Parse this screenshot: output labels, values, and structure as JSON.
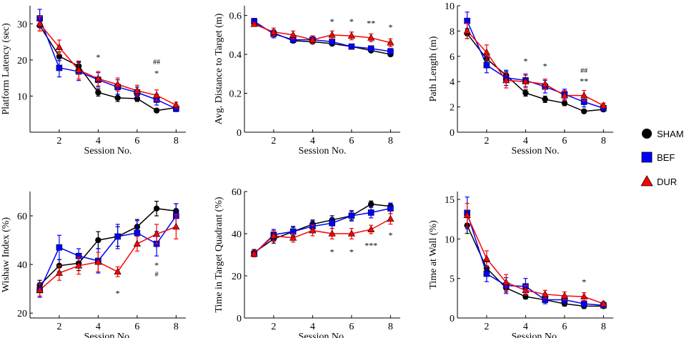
{
  "colors": {
    "SHAM": "#000000",
    "BEF": "#0000ff",
    "DUR": "#ff0000"
  },
  "legend": [
    {
      "name": "SHAM",
      "marker": "circle"
    },
    {
      "name": "BEF",
      "marker": "square"
    },
    {
      "name": "DUR",
      "marker": "triangle"
    }
  ],
  "chart_data": [
    {
      "type": "line",
      "ylabel": "Platform Latency (sec)",
      "xlabel": "Session No.",
      "xlim": [
        0.5,
        8.5
      ],
      "xticks": [
        2,
        4,
        6,
        8
      ],
      "ylim": [
        0,
        35
      ],
      "yticks": [
        10,
        20,
        30
      ],
      "x": [
        1,
        2,
        3,
        4,
        5,
        6,
        7,
        8
      ],
      "series": [
        {
          "name": "SHAM",
          "values": [
            29.5,
            21,
            18.3,
            11,
            9.5,
            9.3,
            6,
            6.8
          ],
          "err": [
            1.5,
            1.2,
            1.2,
            1,
            1,
            0.8,
            0.5,
            0.5
          ]
        },
        {
          "name": "BEF",
          "values": [
            31.5,
            17.8,
            16.8,
            14.5,
            12.5,
            11,
            9,
            6.5
          ],
          "err": [
            2.5,
            2.5,
            2.5,
            2,
            2,
            1.5,
            1.5,
            0.8
          ]
        },
        {
          "name": "DUR",
          "values": [
            30,
            23.5,
            17.2,
            14.8,
            13.2,
            11.5,
            10.2,
            7.5
          ],
          "err": [
            2,
            2,
            2.5,
            2,
            1.8,
            1.5,
            1.5,
            0.8
          ]
        }
      ],
      "annotations": [
        {
          "x": 4,
          "y": 20,
          "text": "*",
          "style": "grey"
        },
        {
          "x": 7,
          "y": 18.8,
          "text": "##",
          "style": "dark"
        },
        {
          "x": 7,
          "y": 15.5,
          "text": "*",
          "style": "grey"
        }
      ]
    },
    {
      "type": "line",
      "ylabel": "Avg. Distance to Target (m)",
      "xlabel": "Session No.",
      "xlim": [
        0.5,
        8.5
      ],
      "xticks": [
        2,
        4,
        6,
        8
      ],
      "ylim": [
        0,
        0.65
      ],
      "yticks": [
        0,
        0.2,
        0.4,
        0.6
      ],
      "x": [
        1,
        2,
        3,
        4,
        5,
        6,
        7,
        8
      ],
      "series": [
        {
          "name": "SHAM",
          "values": [
            0.56,
            0.51,
            0.47,
            0.465,
            0.455,
            0.44,
            0.42,
            0.4
          ],
          "err": [
            0.01,
            0.015,
            0.01,
            0.01,
            0.01,
            0.01,
            0.01,
            0.01
          ]
        },
        {
          "name": "BEF",
          "values": [
            0.57,
            0.505,
            0.475,
            0.475,
            0.465,
            0.44,
            0.43,
            0.415
          ],
          "err": [
            0.015,
            0.02,
            0.015,
            0.02,
            0.015,
            0.01,
            0.01,
            0.015
          ]
        },
        {
          "name": "DUR",
          "values": [
            0.555,
            0.515,
            0.5,
            0.475,
            0.5,
            0.495,
            0.485,
            0.46
          ],
          "err": [
            0.01,
            0.02,
            0.02,
            0.02,
            0.02,
            0.02,
            0.02,
            0.02
          ]
        }
      ],
      "annotations": [
        {
          "x": 5,
          "y": 0.555,
          "text": "*",
          "style": "grey"
        },
        {
          "x": 6,
          "y": 0.555,
          "text": "*",
          "style": "grey"
        },
        {
          "x": 7,
          "y": 0.545,
          "text": "**",
          "style": "grey"
        },
        {
          "x": 8,
          "y": 0.525,
          "text": "*",
          "style": "grey"
        }
      ]
    },
    {
      "type": "line",
      "ylabel": "Path Length (m)",
      "xlabel": "Session No.",
      "xlim": [
        0.5,
        8.5
      ],
      "xticks": [
        2,
        4,
        6,
        8
      ],
      "ylim": [
        0,
        10
      ],
      "yticks": [
        0,
        2,
        4,
        6,
        8,
        10
      ],
      "x": [
        1,
        2,
        3,
        4,
        5,
        6,
        7,
        8
      ],
      "series": [
        {
          "name": "SHAM",
          "values": [
            7.8,
            5.8,
            4.5,
            3.1,
            2.6,
            2.3,
            1.65,
            1.8
          ],
          "err": [
            0.4,
            0.3,
            0.3,
            0.25,
            0.25,
            0.2,
            0.1,
            0.15
          ]
        },
        {
          "name": "BEF",
          "values": [
            8.8,
            5.3,
            4.3,
            4.1,
            3.6,
            3.0,
            2.4,
            1.9
          ],
          "err": [
            0.7,
            0.6,
            0.6,
            0.5,
            0.5,
            0.4,
            0.4,
            0.2
          ]
        },
        {
          "name": "DUR",
          "values": [
            8.0,
            6.3,
            4.1,
            4.0,
            3.8,
            2.9,
            2.9,
            2.1
          ],
          "err": [
            0.6,
            0.6,
            0.6,
            0.5,
            0.4,
            0.4,
            0.4,
            0.2
          ]
        }
      ],
      "annotations": [
        {
          "x": 4,
          "y": 5.4,
          "text": "*",
          "style": "grey"
        },
        {
          "x": 5,
          "y": 5.0,
          "text": "*",
          "style": "grey"
        },
        {
          "x": 7,
          "y": 4.7,
          "text": "##",
          "style": "dark"
        },
        {
          "x": 7,
          "y": 3.8,
          "text": "**",
          "style": "grey"
        }
      ]
    },
    {
      "type": "line",
      "ylabel": "Wishaw Index (%)",
      "xlabel": "Session No.",
      "xlim": [
        0.5,
        8.5
      ],
      "xticks": [
        2,
        4,
        6,
        8
      ],
      "ylim": [
        18,
        70
      ],
      "yticks": [
        20,
        40,
        60
      ],
      "x": [
        1,
        2,
        3,
        4,
        5,
        6,
        7,
        8
      ],
      "series": [
        {
          "name": "SHAM",
          "values": [
            31.5,
            39.5,
            40.5,
            50,
            51.5,
            55.5,
            63,
            62
          ],
          "err": [
            2,
            2.5,
            3,
            3.5,
            4,
            3,
            3,
            3
          ]
        },
        {
          "name": "BEF",
          "values": [
            29.5,
            47,
            43.5,
            41.5,
            51.5,
            53,
            48.5,
            60
          ],
          "err": [
            3,
            5,
            3,
            5,
            5,
            5,
            5,
            5
          ]
        },
        {
          "name": "DUR",
          "values": [
            29.5,
            36.5,
            39.5,
            41,
            37,
            48.5,
            52.5,
            55.5
          ],
          "err": [
            2.5,
            3,
            3.5,
            4,
            2,
            3,
            4,
            5
          ]
        }
      ],
      "annotations": [
        {
          "x": 5,
          "y": 27,
          "text": "*",
          "style": "grey"
        },
        {
          "x": 7,
          "y": 38.5,
          "text": "*",
          "style": "grey"
        },
        {
          "x": 7,
          "y": 35,
          "text": "#",
          "style": "dark"
        }
      ]
    },
    {
      "type": "line",
      "ylabel": "Time in Target Quadrant (%)",
      "xlabel": "Session No.",
      "xlim": [
        0.5,
        8.5
      ],
      "xticks": [
        2,
        4,
        6,
        8
      ],
      "ylim": [
        0,
        60
      ],
      "yticks": [
        0,
        20,
        40,
        60
      ],
      "x": [
        1,
        2,
        3,
        4,
        5,
        6,
        7,
        8
      ],
      "series": [
        {
          "name": "SHAM",
          "values": [
            31,
            37.5,
            41,
            44.5,
            46.5,
            48.5,
            54,
            53
          ],
          "err": [
            1.5,
            2,
            2,
            2,
            2,
            2,
            1.5,
            1.5
          ]
        },
        {
          "name": "BEF",
          "values": [
            30.5,
            39.5,
            41,
            43.5,
            45,
            48.5,
            50,
            52
          ],
          "err": [
            1.5,
            2.5,
            2.5,
            2.5,
            2.5,
            2.5,
            2.5,
            2.5
          ]
        },
        {
          "name": "DUR",
          "values": [
            30.5,
            39,
            38,
            41.5,
            40,
            40,
            42,
            47
          ],
          "err": [
            1.5,
            2.5,
            2,
            2.5,
            2.5,
            2.5,
            2,
            2.5
          ]
        }
      ],
      "annotations": [
        {
          "x": 5,
          "y": 30,
          "text": "*",
          "style": "grey"
        },
        {
          "x": 6,
          "y": 30,
          "text": "*",
          "style": "grey"
        },
        {
          "x": 7,
          "y": 33,
          "text": "***",
          "style": "grey"
        },
        {
          "x": 8,
          "y": 38,
          "text": "*",
          "style": "grey"
        }
      ]
    },
    {
      "type": "line",
      "ylabel": "Time at Wall (%)",
      "xlabel": "Session No.",
      "xlim": [
        0.5,
        8.5
      ],
      "xticks": [
        2,
        4,
        6,
        8
      ],
      "ylim": [
        0,
        16
      ],
      "yticks": [
        0,
        5,
        10,
        15
      ],
      "x": [
        1,
        2,
        3,
        4,
        5,
        6,
        7,
        8
      ],
      "series": [
        {
          "name": "SHAM",
          "values": [
            11.7,
            6.3,
            3.8,
            2.7,
            2.3,
            1.8,
            1.5,
            1.5
          ],
          "err": [
            1,
            0.8,
            0.5,
            0.3,
            0.3,
            0.3,
            0.3,
            0.2
          ]
        },
        {
          "name": "BEF",
          "values": [
            13.3,
            5.6,
            4.1,
            4.0,
            2.3,
            2.3,
            1.8,
            1.6
          ],
          "err": [
            2,
            1,
            1,
            1,
            0.5,
            0.5,
            0.4,
            0.3
          ]
        },
        {
          "name": "DUR",
          "values": [
            13.0,
            7.5,
            4.5,
            3.5,
            3.0,
            2.8,
            2.7,
            1.8
          ],
          "err": [
            1.5,
            1,
            1,
            0.6,
            0.5,
            0.5,
            0.5,
            0.3
          ]
        }
      ],
      "annotations": [
        {
          "x": 7,
          "y": 4.2,
          "text": "*",
          "style": "grey"
        }
      ]
    }
  ]
}
